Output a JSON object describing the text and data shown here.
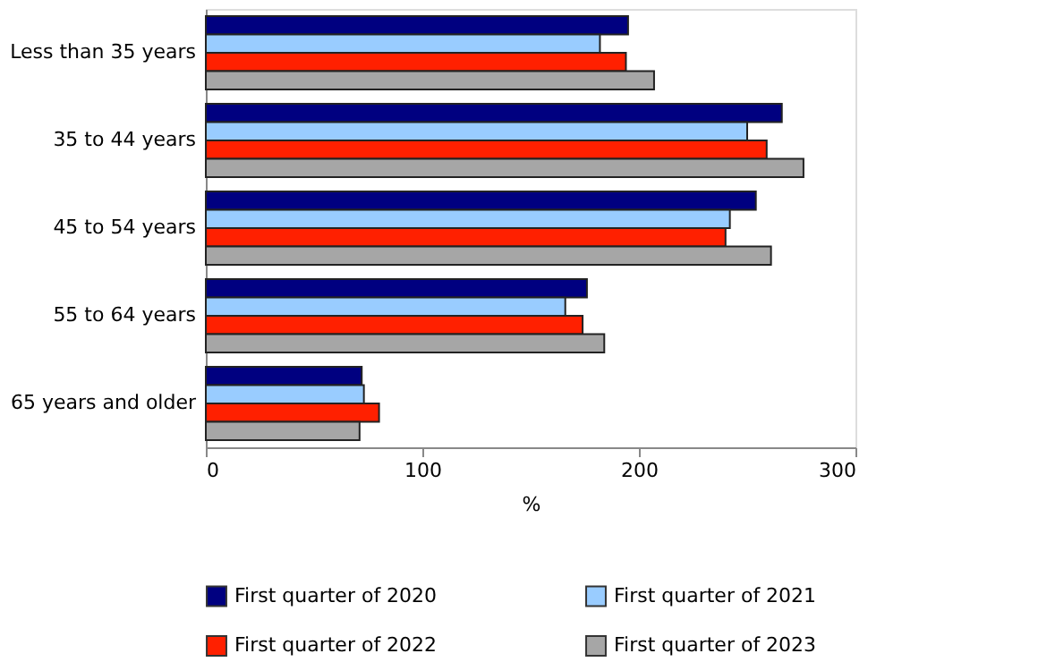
{
  "chart_data": {
    "type": "bar",
    "orientation": "horizontal",
    "xlabel": "%",
    "categories": [
      "Less than 35 years",
      "35 to 44 years",
      "45 to 54 years",
      "55 to 64 years",
      "65 years and older"
    ],
    "series": [
      {
        "name": "First quarter of 2020",
        "color": "#000080",
        "values": [
          195,
          266,
          254,
          176,
          72
        ]
      },
      {
        "name": "First quarter of 2021",
        "color": "#99ccff",
        "values": [
          182,
          250,
          242,
          166,
          73
        ]
      },
      {
        "name": "First quarter of 2022",
        "color": "#ff2000",
        "values": [
          194,
          259,
          240,
          174,
          80
        ]
      },
      {
        "name": "First quarter of 2023",
        "color": "#a6a6a6",
        "values": [
          207,
          276,
          261,
          184,
          71
        ]
      }
    ],
    "xlim": [
      0,
      300
    ],
    "xticks": [
      0,
      100,
      200,
      300
    ],
    "grid": false,
    "legend": "bottom"
  }
}
